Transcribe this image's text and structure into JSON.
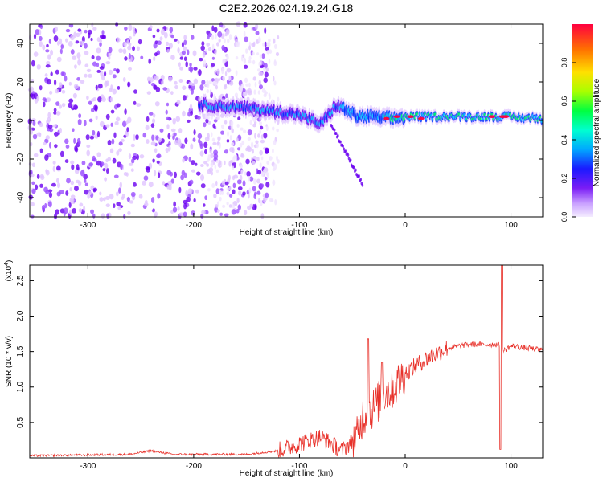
{
  "title": "C2E2.2026.024.19.24.G18",
  "chart_data": [
    {
      "type": "heatmap",
      "xlabel": "Height of straight line (km)",
      "ylabel": "Frequency (Hz)",
      "xlim": [
        -355,
        130
      ],
      "ylim": [
        -50,
        50
      ],
      "x_ticks": [
        -300,
        -200,
        -100,
        0,
        100
      ],
      "y_ticks": [
        -40,
        -20,
        0,
        20,
        40
      ],
      "colorbar": {
        "label": "Normalized spectral amplitude",
        "range": [
          0,
          1
        ],
        "ticks": [
          0.0,
          0.2,
          0.4,
          0.6,
          0.8
        ]
      },
      "ridge": {
        "description_points_x": [
          -190,
          -160,
          -130,
          -100,
          -80,
          -65,
          -45,
          -30,
          -10,
          0,
          30,
          60,
          90,
          130
        ],
        "frequency_hz": [
          8,
          7,
          5,
          3,
          -2,
          8,
          2,
          2,
          1,
          2,
          2,
          2,
          2,
          1
        ]
      },
      "colormap": [
        "#f0e4ff",
        "#e0c4ff",
        "#9a4dff",
        "#6a00f0",
        "#0033ff",
        "#00c8ff",
        "#00ff66",
        "#ffe000",
        "#ff6a00",
        "#ff0040"
      ]
    },
    {
      "type": "line",
      "xlabel": "Height of straight line (km)",
      "ylabel": "SNR (10 * v/v)",
      "y_multiplier": "(x10^4)",
      "y_multiplier_base": "(x10",
      "y_multiplier_exp": "4",
      "y_multiplier_close": ")",
      "xlim": [
        -355,
        130
      ],
      "ylim": [
        0,
        2.72
      ],
      "x_ticks": [
        -300,
        -200,
        -100,
        0,
        100
      ],
      "y_ticks": [
        0.5,
        1.0,
        1.5,
        2.0,
        2.5
      ],
      "color": "#e8312a",
      "trend": {
        "x": [
          -355,
          -260,
          -240,
          -220,
          -150,
          -120,
          -100,
          -80,
          -60,
          -45,
          -40,
          -30,
          -20,
          -10,
          0,
          20,
          40,
          60,
          80,
          88,
          92,
          100,
          130
        ],
        "y": [
          0.03,
          0.05,
          0.1,
          0.05,
          0.05,
          0.1,
          0.2,
          0.3,
          0.1,
          0.3,
          0.6,
          0.7,
          0.9,
          1.0,
          1.2,
          1.4,
          1.55,
          1.6,
          1.6,
          1.6,
          1.5,
          1.58,
          1.52
        ]
      },
      "spikes": [
        {
          "x": -35,
          "y": 1.68
        },
        {
          "x": -22,
          "y": 1.35
        },
        {
          "x": 91,
          "y": 2.72
        },
        {
          "x": 90,
          "y": 0.12
        }
      ]
    }
  ]
}
